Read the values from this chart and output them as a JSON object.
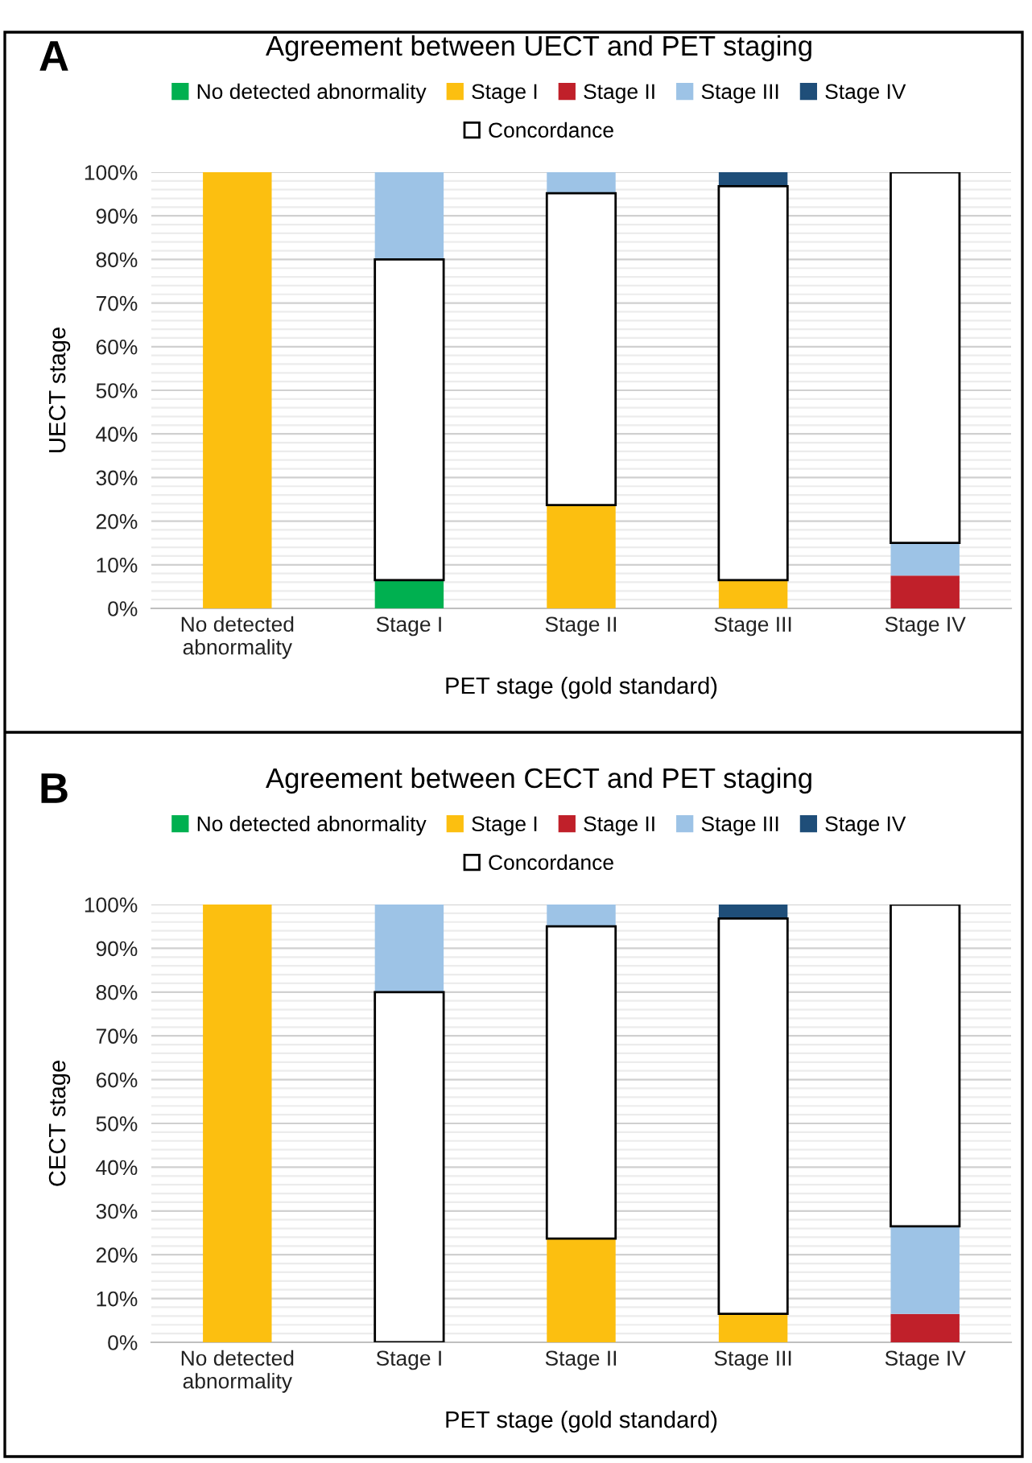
{
  "chart_data": [
    {
      "type": "bar",
      "title": "Agreement between UECT and PET staging",
      "xlabel": "PET stage (gold standard)",
      "ylabel": "UECT stage",
      "annotations": [
        "A"
      ],
      "legend": "top",
      "grid": "y",
      "categories": [
        "No detected\nabnormality",
        "Stage I",
        "Stage II",
        "Stage III",
        "Stage IV"
      ],
      "ylim": [
        0,
        100
      ],
      "yticks": [
        {
          "value": 0,
          "label": "0%"
        },
        {
          "value": 2,
          "label": null
        },
        {
          "value": 4,
          "label": null
        },
        {
          "value": 6,
          "label": null
        },
        {
          "value": 8,
          "label": null
        },
        {
          "value": 10,
          "label": "10%"
        },
        {
          "value": 12,
          "label": null
        },
        {
          "value": 14,
          "label": null
        },
        {
          "value": 16,
          "label": null
        },
        {
          "value": 18,
          "label": null
        },
        {
          "value": 20,
          "label": "20%"
        },
        {
          "value": 22,
          "label": null
        },
        {
          "value": 24,
          "label": null
        },
        {
          "value": 26,
          "label": null
        },
        {
          "value": 28,
          "label": null
        },
        {
          "value": 30,
          "label": "30%"
        },
        {
          "value": 32,
          "label": null
        },
        {
          "value": 34,
          "label": null
        },
        {
          "value": 36,
          "label": null
        },
        {
          "value": 38,
          "label": null
        },
        {
          "value": 40,
          "label": "40%"
        },
        {
          "value": 42,
          "label": null
        },
        {
          "value": 44,
          "label": null
        },
        {
          "value": 46,
          "label": null
        },
        {
          "value": 48,
          "label": null
        },
        {
          "value": 50,
          "label": "50%"
        },
        {
          "value": 52,
          "label": null
        },
        {
          "value": 54,
          "label": null
        },
        {
          "value": 56,
          "label": null
        },
        {
          "value": 58,
          "label": null
        },
        {
          "value": 60,
          "label": "60%"
        },
        {
          "value": 62,
          "label": null
        },
        {
          "value": 64,
          "label": null
        },
        {
          "value": 66,
          "label": null
        },
        {
          "value": 68,
          "label": null
        },
        {
          "value": 70,
          "label": "70%"
        },
        {
          "value": 72,
          "label": null
        },
        {
          "value": 74,
          "label": null
        },
        {
          "value": 76,
          "label": null
        },
        {
          "value": 78,
          "label": null
        },
        {
          "value": 80,
          "label": "80%"
        },
        {
          "value": 82,
          "label": null
        },
        {
          "value": 84,
          "label": null
        },
        {
          "value": 86,
          "label": null
        },
        {
          "value": 88,
          "label": null
        },
        {
          "value": 90,
          "label": "90%"
        },
        {
          "value": 92,
          "label": null
        },
        {
          "value": 94,
          "label": null
        },
        {
          "value": 96,
          "label": null
        },
        {
          "value": 98,
          "label": null
        },
        {
          "value": 100,
          "label": "100%"
        }
      ],
      "series": [
        {
          "name": "No detected abnormality",
          "color": "#00b050",
          "values": [
            null,
            6.5,
            null,
            null,
            null
          ],
          "base": [
            null,
            0,
            null,
            null,
            null
          ]
        },
        {
          "name": "Stage I",
          "color": "#fcbf10",
          "values": [
            100,
            null,
            23.7,
            6.5,
            null
          ],
          "base": [
            0,
            null,
            0,
            0,
            null
          ]
        },
        {
          "name": "Stage II",
          "color": "#c0202a",
          "values": [
            null,
            null,
            null,
            null,
            7.5
          ],
          "base": [
            null,
            null,
            null,
            null,
            0
          ]
        },
        {
          "name": "Stage III",
          "color": "#9dc3e6",
          "values": [
            null,
            20,
            4.8,
            null,
            7.5
          ],
          "base": [
            null,
            80,
            95.2,
            null,
            7.5
          ]
        },
        {
          "name": "Stage IV",
          "color": "#1f4e79",
          "values": [
            null,
            null,
            null,
            3.2,
            null
          ],
          "base": [
            null,
            null,
            null,
            96.8,
            null
          ]
        },
        {
          "name": "Concordance",
          "color": "#ffffff",
          "values": [
            null,
            73.5,
            71.5,
            90.3,
            85
          ],
          "base": [
            null,
            6.5,
            23.7,
            6.5,
            15
          ]
        }
      ]
    },
    {
      "type": "bar",
      "title": "Agreement between CECT and PET staging",
      "xlabel": "PET stage (gold standard)",
      "ylabel": "CECT stage",
      "annotations": [
        "B"
      ],
      "legend": "top",
      "grid": "y",
      "categories": [
        "No detected\nabnormality",
        "Stage I",
        "Stage II",
        "Stage III",
        "Stage IV"
      ],
      "ylim": [
        0,
        100
      ],
      "yticks": [
        {
          "value": 0,
          "label": "0%"
        },
        {
          "value": 2,
          "label": null
        },
        {
          "value": 4,
          "label": null
        },
        {
          "value": 6,
          "label": null
        },
        {
          "value": 8,
          "label": null
        },
        {
          "value": 10,
          "label": "10%"
        },
        {
          "value": 12,
          "label": null
        },
        {
          "value": 14,
          "label": null
        },
        {
          "value": 16,
          "label": null
        },
        {
          "value": 18,
          "label": null
        },
        {
          "value": 20,
          "label": "20%"
        },
        {
          "value": 22,
          "label": null
        },
        {
          "value": 24,
          "label": null
        },
        {
          "value": 26,
          "label": null
        },
        {
          "value": 28,
          "label": null
        },
        {
          "value": 30,
          "label": "30%"
        },
        {
          "value": 32,
          "label": null
        },
        {
          "value": 34,
          "label": null
        },
        {
          "value": 36,
          "label": null
        },
        {
          "value": 38,
          "label": null
        },
        {
          "value": 40,
          "label": "40%"
        },
        {
          "value": 42,
          "label": null
        },
        {
          "value": 44,
          "label": null
        },
        {
          "value": 46,
          "label": null
        },
        {
          "value": 48,
          "label": null
        },
        {
          "value": 50,
          "label": "50%"
        },
        {
          "value": 52,
          "label": null
        },
        {
          "value": 54,
          "label": null
        },
        {
          "value": 56,
          "label": null
        },
        {
          "value": 58,
          "label": null
        },
        {
          "value": 60,
          "label": "60%"
        },
        {
          "value": 62,
          "label": null
        },
        {
          "value": 64,
          "label": null
        },
        {
          "value": 66,
          "label": null
        },
        {
          "value": 68,
          "label": null
        },
        {
          "value": 70,
          "label": "70%"
        },
        {
          "value": 72,
          "label": null
        },
        {
          "value": 74,
          "label": null
        },
        {
          "value": 76,
          "label": null
        },
        {
          "value": 78,
          "label": null
        },
        {
          "value": 80,
          "label": "80%"
        },
        {
          "value": 82,
          "label": null
        },
        {
          "value": 84,
          "label": null
        },
        {
          "value": 86,
          "label": null
        },
        {
          "value": 88,
          "label": null
        },
        {
          "value": 90,
          "label": "90%"
        },
        {
          "value": 92,
          "label": null
        },
        {
          "value": 94,
          "label": null
        },
        {
          "value": 96,
          "label": null
        },
        {
          "value": 98,
          "label": null
        },
        {
          "value": 100,
          "label": "100%"
        }
      ],
      "series": [
        {
          "name": "No detected abnormality",
          "color": "#00b050",
          "values": [
            null,
            null,
            null,
            null,
            null
          ],
          "base": [
            null,
            null,
            null,
            null,
            null
          ]
        },
        {
          "name": "Stage I",
          "color": "#fcbf10",
          "values": [
            100,
            null,
            23.7,
            6.5,
            null
          ],
          "base": [
            0,
            null,
            0,
            0,
            null
          ]
        },
        {
          "name": "Stage II",
          "color": "#c0202a",
          "values": [
            null,
            null,
            null,
            null,
            6.5
          ],
          "base": [
            null,
            null,
            null,
            null,
            0
          ]
        },
        {
          "name": "Stage III",
          "color": "#9dc3e6",
          "values": [
            null,
            20,
            5,
            null,
            20
          ],
          "base": [
            null,
            80,
            95,
            null,
            6.5
          ]
        },
        {
          "name": "Stage IV",
          "color": "#1f4e79",
          "values": [
            null,
            null,
            null,
            3.2,
            null
          ],
          "base": [
            null,
            null,
            null,
            96.8,
            null
          ]
        },
        {
          "name": "Concordance",
          "color": "#ffffff",
          "values": [
            null,
            80,
            71.3,
            90.3,
            73.5
          ],
          "base": [
            null,
            0,
            23.7,
            6.5,
            26.5
          ]
        }
      ]
    }
  ]
}
